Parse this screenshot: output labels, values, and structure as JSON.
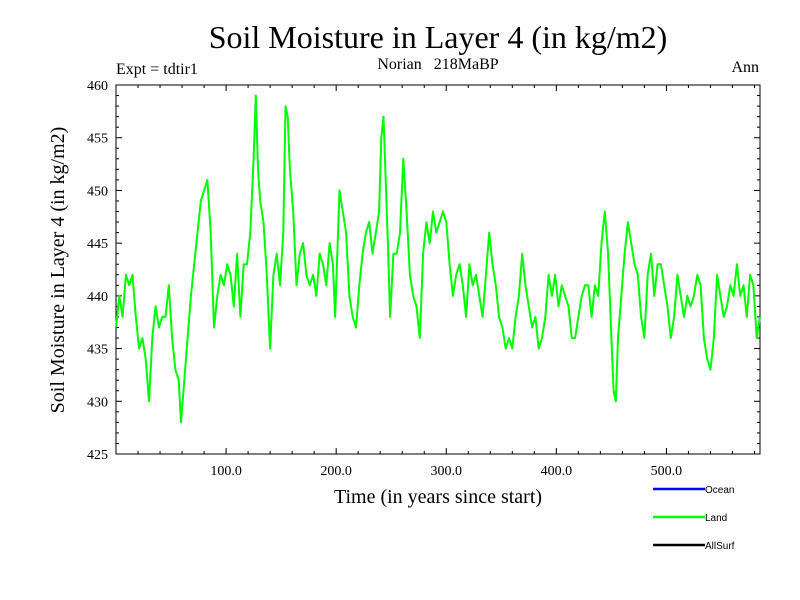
{
  "chart_data": {
    "type": "line",
    "title": "Soil Moisture in Layer 4 (in kg/m2)",
    "subtitle_left": "Expt = tdtir1",
    "subtitle_center": "Norian   218MaBP",
    "subtitle_right": "Ann",
    "xlabel": "Time (in years since start)",
    "ylabel": "Soil Moisture in Layer 4 (in kg/m2)",
    "xlim": [
      0,
      585
    ],
    "ylim": [
      425,
      460
    ],
    "x_ticks": [
      100,
      200,
      300,
      400,
      500
    ],
    "x_tick_labels": [
      "100.0",
      "200.0",
      "300.0",
      "400.0",
      "500.0"
    ],
    "y_ticks": [
      425,
      430,
      435,
      440,
      445,
      450,
      455,
      460
    ],
    "y_tick_labels": [
      "425",
      "430",
      "435",
      "440",
      "445",
      "450",
      "455",
      "460"
    ],
    "legend": [
      {
        "name": "Ocean",
        "color": "#0000ff"
      },
      {
        "name": "Land",
        "color": "#00ff00"
      },
      {
        "name": "AllSurf",
        "color": "#000000"
      }
    ],
    "series": [
      {
        "name": "Land",
        "color": "#00ff00",
        "points": [
          [
            0,
            437
          ],
          [
            3,
            440
          ],
          [
            6,
            438
          ],
          [
            9,
            442
          ],
          [
            12,
            441
          ],
          [
            15,
            442
          ],
          [
            18,
            438
          ],
          [
            21,
            435
          ],
          [
            24,
            436
          ],
          [
            27,
            434
          ],
          [
            30,
            430
          ],
          [
            33,
            436
          ],
          [
            36,
            439
          ],
          [
            39,
            437
          ],
          [
            42,
            438
          ],
          [
            45,
            438
          ],
          [
            48,
            441
          ],
          [
            51,
            436
          ],
          [
            54,
            433
          ],
          [
            57,
            432
          ],
          [
            59,
            428
          ],
          [
            62,
            432
          ],
          [
            65,
            436
          ],
          [
            68,
            440
          ],
          [
            71,
            443
          ],
          [
            74,
            446
          ],
          [
            77,
            449
          ],
          [
            80,
            450
          ],
          [
            83,
            451
          ],
          [
            86,
            446
          ],
          [
            89,
            437
          ],
          [
            92,
            440
          ],
          [
            95,
            442
          ],
          [
            98,
            441
          ],
          [
            101,
            443
          ],
          [
            104,
            442
          ],
          [
            107,
            439
          ],
          [
            110,
            444
          ],
          [
            113,
            438
          ],
          [
            116,
            443
          ],
          [
            119,
            443
          ],
          [
            122,
            446
          ],
          [
            125,
            453
          ],
          [
            127,
            459
          ],
          [
            129,
            452
          ],
          [
            131,
            449
          ],
          [
            134,
            447
          ],
          [
            137,
            442
          ],
          [
            140,
            435
          ],
          [
            143,
            442
          ],
          [
            146,
            444
          ],
          [
            149,
            441
          ],
          [
            152,
            446
          ],
          [
            154,
            458
          ],
          [
            156,
            457
          ],
          [
            158,
            452
          ],
          [
            161,
            448
          ],
          [
            164,
            441
          ],
          [
            167,
            444
          ],
          [
            170,
            445
          ],
          [
            173,
            442
          ],
          [
            176,
            441
          ],
          [
            179,
            442
          ],
          [
            182,
            440
          ],
          [
            185,
            444
          ],
          [
            188,
            443
          ],
          [
            191,
            441
          ],
          [
            194,
            445
          ],
          [
            197,
            443
          ],
          [
            199,
            438
          ],
          [
            201,
            444
          ],
          [
            203,
            450
          ],
          [
            206,
            448
          ],
          [
            209,
            446
          ],
          [
            212,
            440
          ],
          [
            215,
            438
          ],
          [
            218,
            437
          ],
          [
            221,
            441
          ],
          [
            224,
            444
          ],
          [
            227,
            446
          ],
          [
            230,
            447
          ],
          [
            233,
            444
          ],
          [
            236,
            446
          ],
          [
            239,
            448
          ],
          [
            241,
            455
          ],
          [
            243,
            457
          ],
          [
            245,
            451
          ],
          [
            247,
            445
          ],
          [
            249,
            438
          ],
          [
            252,
            444
          ],
          [
            255,
            444
          ],
          [
            258,
            446
          ],
          [
            261,
            453
          ],
          [
            264,
            448
          ],
          [
            267,
            442
          ],
          [
            270,
            440
          ],
          [
            273,
            439
          ],
          [
            276,
            436
          ],
          [
            279,
            444
          ],
          [
            282,
            447
          ],
          [
            285,
            445
          ],
          [
            288,
            448
          ],
          [
            291,
            446
          ],
          [
            294,
            447
          ],
          [
            297,
            448
          ],
          [
            300,
            447
          ],
          [
            303,
            443
          ],
          [
            306,
            440
          ],
          [
            309,
            442
          ],
          [
            312,
            443
          ],
          [
            315,
            441
          ],
          [
            318,
            438
          ],
          [
            321,
            443
          ],
          [
            324,
            441
          ],
          [
            327,
            442
          ],
          [
            330,
            440
          ],
          [
            333,
            438
          ],
          [
            336,
            442
          ],
          [
            339,
            446
          ],
          [
            342,
            443
          ],
          [
            345,
            441
          ],
          [
            348,
            438
          ],
          [
            351,
            437
          ],
          [
            354,
            435
          ],
          [
            357,
            436
          ],
          [
            360,
            435
          ],
          [
            363,
            438
          ],
          [
            366,
            440
          ],
          [
            369,
            444
          ],
          [
            372,
            441
          ],
          [
            375,
            439
          ],
          [
            378,
            437
          ],
          [
            381,
            438
          ],
          [
            384,
            435
          ],
          [
            387,
            436
          ],
          [
            390,
            438
          ],
          [
            393,
            442
          ],
          [
            396,
            440
          ],
          [
            399,
            442
          ],
          [
            402,
            439
          ],
          [
            405,
            441
          ],
          [
            408,
            440
          ],
          [
            411,
            439
          ],
          [
            414,
            436
          ],
          [
            417,
            436
          ],
          [
            420,
            438
          ],
          [
            423,
            440
          ],
          [
            426,
            441
          ],
          [
            429,
            441
          ],
          [
            432,
            438
          ],
          [
            435,
            441
          ],
          [
            438,
            440
          ],
          [
            441,
            445
          ],
          [
            444,
            448
          ],
          [
            447,
            444
          ],
          [
            450,
            436
          ],
          [
            452,
            431
          ],
          [
            454,
            430
          ],
          [
            456,
            436
          ],
          [
            459,
            440
          ],
          [
            462,
            444
          ],
          [
            465,
            447
          ],
          [
            468,
            445
          ],
          [
            471,
            443
          ],
          [
            474,
            442
          ],
          [
            477,
            438
          ],
          [
            480,
            436
          ],
          [
            483,
            442
          ],
          [
            486,
            444
          ],
          [
            489,
            440
          ],
          [
            492,
            443
          ],
          [
            495,
            443
          ],
          [
            498,
            441
          ],
          [
            501,
            439
          ],
          [
            504,
            436
          ],
          [
            507,
            438
          ],
          [
            510,
            442
          ],
          [
            513,
            440
          ],
          [
            516,
            438
          ],
          [
            519,
            440
          ],
          [
            522,
            439
          ],
          [
            525,
            440
          ],
          [
            528,
            442
          ],
          [
            531,
            441
          ],
          [
            534,
            436
          ],
          [
            537,
            434
          ],
          [
            540,
            433
          ],
          [
            543,
            436
          ],
          [
            546,
            442
          ],
          [
            549,
            440
          ],
          [
            552,
            438
          ],
          [
            555,
            439
          ],
          [
            558,
            441
          ],
          [
            561,
            440
          ],
          [
            564,
            443
          ],
          [
            567,
            440
          ],
          [
            570,
            441
          ],
          [
            573,
            438
          ],
          [
            576,
            442
          ],
          [
            579,
            441
          ],
          [
            582,
            436
          ],
          [
            585,
            438
          ]
        ]
      }
    ]
  }
}
